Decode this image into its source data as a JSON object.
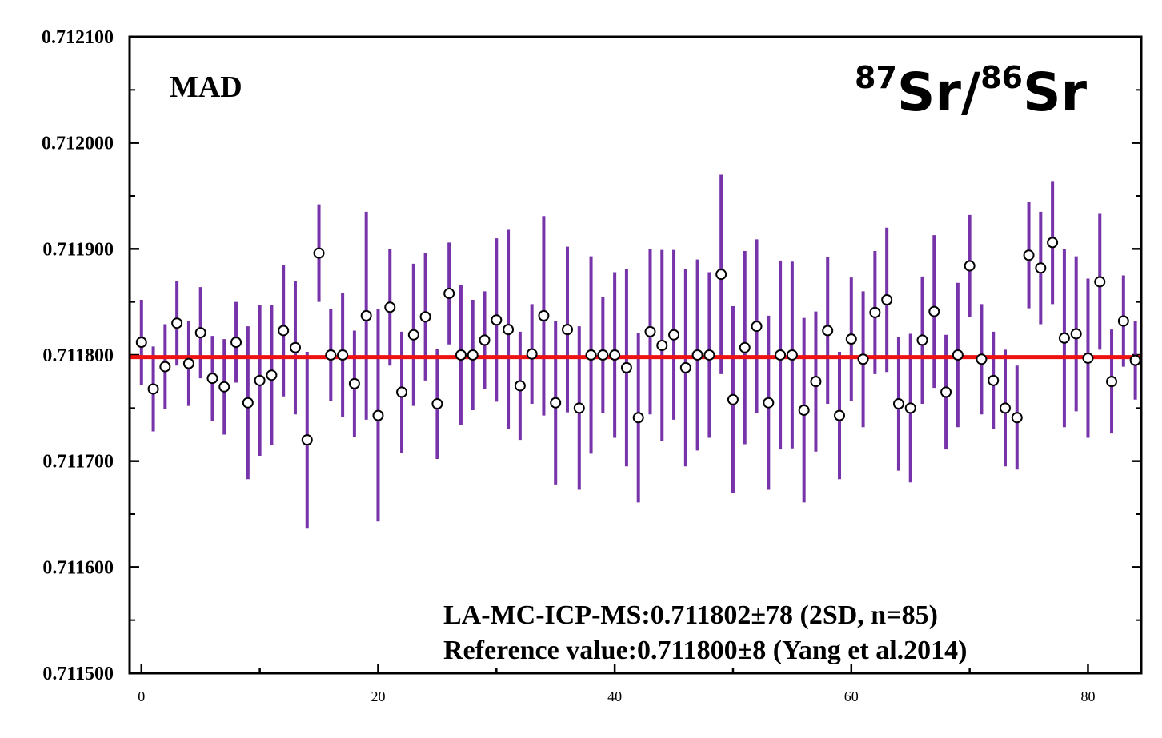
{
  "chart_data": {
    "type": "scatter",
    "panel_label": "MAD",
    "ratio_label": {
      "mass_a": "87",
      "element_a": "Sr",
      "separator": "/",
      "mass_b": "86",
      "element_b": "Sr"
    },
    "xlim": [
      -1,
      84.5
    ],
    "ylim": [
      0.7115,
      0.7121
    ],
    "xticks": [
      0,
      20,
      40,
      60,
      80
    ],
    "xtick_labels": [
      "0",
      "20",
      "40",
      "60",
      "80"
    ],
    "yticks": [
      0.7115,
      0.7116,
      0.7117,
      0.7118,
      0.7119,
      0.712,
      0.7121
    ],
    "ytick_labels": [
      "0.711500",
      "0.711600",
      "0.711700",
      "0.711800",
      "0.711900",
      "0.712000",
      "0.712100"
    ],
    "reference_line": {
      "y": 0.711798,
      "color": "#ee1111"
    },
    "errorbar_color": "#7733aa",
    "marker": "open-circle",
    "annotations": [
      "LA-MC-ICP-MS:0.711802±78 (2SD, n=85)",
      "Reference value:0.711800±8 (Yang et al.2014)"
    ],
    "series": [
      {
        "x": [
          0,
          1,
          2,
          3,
          4,
          5,
          6,
          7,
          8,
          9,
          10,
          11,
          12,
          13,
          14,
          15,
          16,
          17,
          18,
          19,
          20,
          21,
          22,
          23,
          24,
          25,
          26,
          27,
          28,
          29,
          30,
          31,
          32,
          33,
          34,
          35,
          36,
          37,
          38,
          39,
          40,
          41,
          42,
          43,
          44,
          45,
          46,
          47,
          48,
          49,
          50,
          51,
          52,
          53,
          54,
          55,
          56,
          57,
          58,
          59,
          60,
          61,
          62,
          63,
          64,
          65,
          66,
          67,
          68,
          69,
          70,
          71,
          72,
          73,
          74,
          75,
          76,
          77,
          78,
          79,
          80,
          81,
          82,
          83,
          84
        ],
        "y": [
          0.711812,
          0.711768,
          0.711789,
          0.71183,
          0.711792,
          0.711821,
          0.711778,
          0.71177,
          0.711812,
          0.711755,
          0.711776,
          0.711781,
          0.711823,
          0.711807,
          0.71172,
          0.711896,
          0.7118,
          0.7118,
          0.711773,
          0.711837,
          0.711743,
          0.711845,
          0.711765,
          0.711819,
          0.711836,
          0.711754,
          0.711858,
          0.7118,
          0.7118,
          0.711814,
          0.711833,
          0.711824,
          0.711771,
          0.711801,
          0.711837,
          0.711755,
          0.711824,
          0.71175,
          0.7118,
          0.7118,
          0.7118,
          0.711788,
          0.711741,
          0.711822,
          0.711809,
          0.711819,
          0.711788,
          0.7118,
          0.7118,
          0.711876,
          0.711758,
          0.711807,
          0.711827,
          0.711755,
          0.7118,
          0.7118,
          0.711748,
          0.711775,
          0.711823,
          0.711743,
          0.711815,
          0.711796,
          0.71184,
          0.711852,
          0.711754,
          0.71175,
          0.711814,
          0.711841,
          0.711765,
          0.7118,
          0.711884,
          0.711796,
          0.711776,
          0.71175,
          0.711741,
          0.711894,
          0.711882,
          0.711906,
          0.711816,
          0.71182,
          0.711797,
          0.711869,
          0.711775,
          0.711832,
          0.711795
        ],
        "err": [
          4e-05,
          4e-05,
          4e-05,
          4e-05,
          4e-05,
          4.3e-05,
          4e-05,
          4.5e-05,
          3.8e-05,
          7.2e-05,
          7.1e-05,
          6.6e-05,
          6.2e-05,
          6.3e-05,
          8.3e-05,
          4.6e-05,
          4.3e-05,
          5.8e-05,
          5e-05,
          9.8e-05,
          0.0001,
          5.5e-05,
          5.7e-05,
          6.7e-05,
          6e-05,
          5.2e-05,
          4.8e-05,
          6.6e-05,
          5.2e-05,
          4.6e-05,
          7.7e-05,
          9.4e-05,
          5.1e-05,
          4.7e-05,
          9.4e-05,
          7.7e-05,
          7.8e-05,
          7.7e-05,
          9.3e-05,
          5.5e-05,
          7.8e-05,
          9.3e-05,
          8e-05,
          7.8e-05,
          9e-05,
          8e-05,
          9.3e-05,
          9e-05,
          7.8e-05,
          9.4e-05,
          8.8e-05,
          9.1e-05,
          8.2e-05,
          8.2e-05,
          8.9e-05,
          8.8e-05,
          8.7e-05,
          6.6e-05,
          6.9e-05,
          6e-05,
          5.8e-05,
          6.4e-05,
          5.8e-05,
          6.8e-05,
          6.3e-05,
          7e-05,
          6e-05,
          7.2e-05,
          5.4e-05,
          6.8e-05,
          4.8e-05,
          5.2e-05,
          4.6e-05,
          5.5e-05,
          4.9e-05,
          5e-05,
          5.3e-05,
          5.8e-05,
          8.4e-05,
          7.3e-05,
          7.5e-05,
          6.4e-05,
          4.9e-05,
          4.3e-05,
          3.7e-05
        ]
      }
    ]
  }
}
